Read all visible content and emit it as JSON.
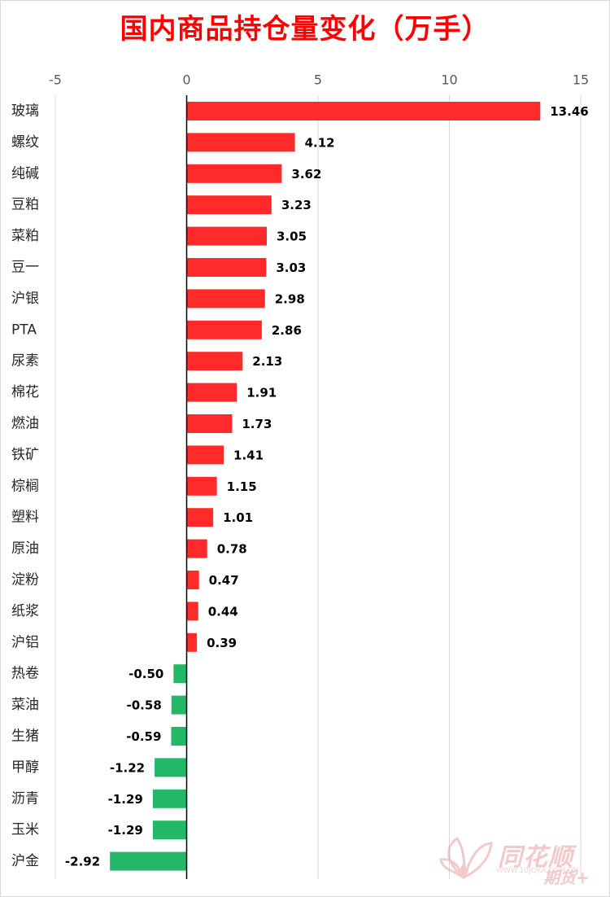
{
  "chart_data": {
    "type": "bar",
    "orientation": "horizontal",
    "title": "国内商品持仓量变化（万手）",
    "xlabel": "",
    "ylabel": "",
    "xlim": [
      -5,
      15
    ],
    "ticks": [
      -5,
      0,
      5,
      10,
      15
    ],
    "gridlines": true,
    "categories": [
      "玻璃",
      "螺纹",
      "纯碱",
      "豆粕",
      "菜粕",
      "豆一",
      "沪银",
      "PTA",
      "尿素",
      "棉花",
      "燃油",
      "铁矿",
      "棕榈",
      "塑料",
      "原油",
      "淀粉",
      "纸浆",
      "沪铝",
      "热卷",
      "菜油",
      "生猪",
      "甲醇",
      "沥青",
      "玉米",
      "沪金"
    ],
    "values": [
      13.46,
      4.12,
      3.62,
      3.23,
      3.05,
      3.03,
      2.98,
      2.86,
      2.13,
      1.91,
      1.73,
      1.41,
      1.15,
      1.01,
      0.78,
      0.47,
      0.44,
      0.39,
      -0.5,
      -0.58,
      -0.59,
      -1.22,
      -1.29,
      -1.29,
      -2.92
    ],
    "value_labels": [
      "13.46",
      "4.12",
      "3.62",
      "3.23",
      "3.05",
      "3.03",
      "2.98",
      "2.86",
      "2.13",
      "1.91",
      "1.73",
      "1.41",
      "1.15",
      "1.01",
      "0.78",
      "0.47",
      "0.44",
      "0.39",
      "-0.50",
      "-0.58",
      "-0.59",
      "-1.22",
      "-1.29",
      "-1.29",
      "-2.92"
    ],
    "colors": {
      "positive": "#ff2a2a",
      "negative": "#22b868"
    }
  },
  "watermark": {
    "brand": "同花顺",
    "sub": "期货+",
    "site": "WWW.10JQKA.COM.CN",
    "logo_icon": "flower-logo-icon"
  }
}
